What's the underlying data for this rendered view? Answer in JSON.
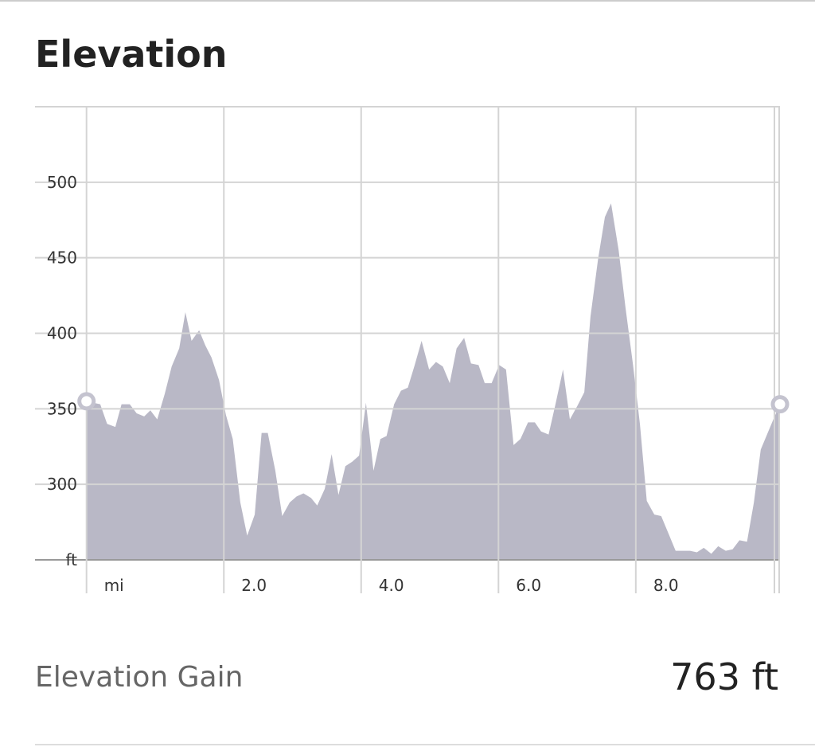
{
  "header": {
    "title": "Elevation"
  },
  "chart_data": {
    "type": "area",
    "x": [
      0,
      0.2,
      0.3,
      0.42,
      0.51,
      0.63,
      0.73,
      0.84,
      0.93,
      1.03,
      1.14,
      1.24,
      1.35,
      1.44,
      1.53,
      1.64,
      1.73,
      1.82,
      1.93,
      2.03,
      2.13,
      2.24,
      2.34,
      2.45,
      2.55,
      2.64,
      2.75,
      2.85,
      2.96,
      3.06,
      3.16,
      3.27,
      3.36,
      3.47,
      3.57,
      3.67,
      3.77,
      3.87,
      3.97,
      4.07,
      4.18,
      4.28,
      4.37,
      4.48,
      4.58,
      4.68,
      4.78,
      4.88,
      4.99,
      5.09,
      5.19,
      5.29,
      5.39,
      5.5,
      5.6,
      5.71,
      5.8,
      5.9,
      6.01,
      6.11,
      6.22,
      6.32,
      6.43,
      6.53,
      6.62,
      6.73,
      6.83,
      6.94,
      7.04,
      7.15,
      7.25,
      7.34,
      7.45,
      7.55,
      7.64,
      7.75,
      7.85,
      7.96,
      8.06,
      8.16,
      8.27,
      8.37,
      8.48,
      8.58,
      8.68,
      8.79,
      8.89,
      8.99,
      9.1,
      9.2,
      9.31,
      9.41,
      9.51,
      9.62,
      9.72,
      9.82,
      9.93,
      10.05,
      10.1
    ],
    "values": [
      355,
      353,
      340,
      338,
      353,
      353,
      347,
      345,
      349,
      343,
      360,
      378,
      390,
      414,
      395,
      402,
      392,
      384,
      369,
      346,
      330,
      288,
      266,
      280,
      334,
      334,
      309,
      279,
      288,
      292,
      294,
      291,
      286,
      297,
      320,
      293,
      312,
      315,
      319,
      354,
      309,
      330,
      332,
      353,
      362,
      364,
      379,
      395,
      376,
      381,
      378,
      367,
      390,
      397,
      380,
      379,
      367,
      367,
      379,
      376,
      326,
      330,
      341,
      341,
      335,
      333,
      353,
      376,
      343,
      352,
      361,
      411,
      449,
      477,
      486,
      455,
      417,
      379,
      340,
      289,
      280,
      279,
      267,
      256,
      256,
      256,
      255,
      258,
      254,
      259,
      256,
      257,
      263,
      262,
      288,
      323,
      335,
      348,
      353
    ],
    "color": "#b9b8c6",
    "xlim": [
      -0.75,
      10.1
    ],
    "ylim": [
      250,
      550
    ],
    "xticks": [
      {
        "value": 0,
        "label": "mi"
      },
      {
        "value": 2,
        "label": "2.0"
      },
      {
        "value": 4,
        "label": "4.0"
      },
      {
        "value": 6,
        "label": "6.0"
      },
      {
        "value": 8,
        "label": "8.0"
      }
    ],
    "yticks": [
      {
        "value": 250,
        "label": "ft"
      },
      300,
      350,
      400,
      450,
      500,
      550
    ],
    "grid": true
  },
  "stats": {
    "label": "Elevation Gain",
    "value": "763 ft"
  }
}
